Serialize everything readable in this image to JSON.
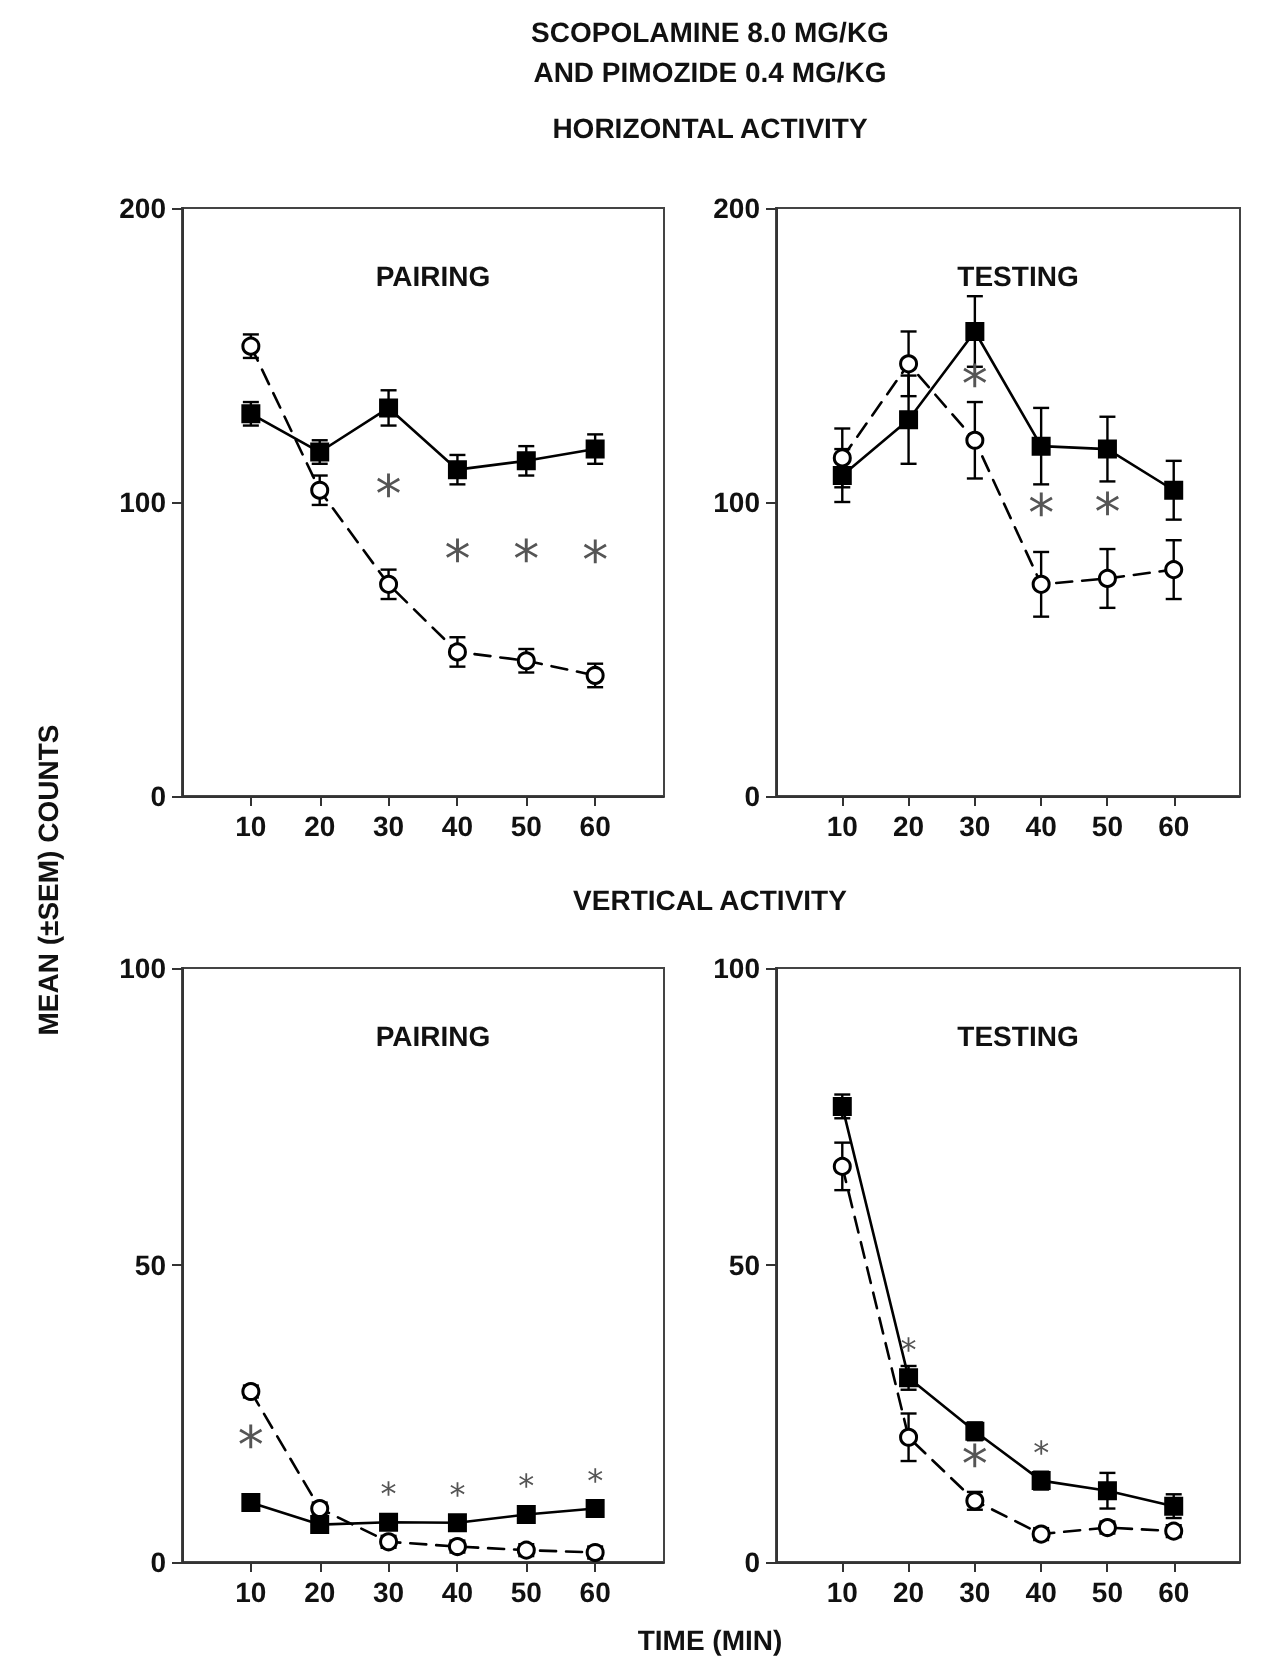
{
  "chart_data": [
    {
      "type": "line",
      "title": "PAIRING",
      "ylabel": "MEAN (±SEM) COUNTS",
      "annotations": [
        "SCOPOLAMINE 8.0 MG/KG",
        "AND PIMOZIDE 0.4 MG/KG",
        "HORIZONTAL ACTIVITY",
        "*",
        "*",
        "*",
        "*"
      ],
      "x": [
        10,
        20,
        30,
        40,
        50,
        60
      ],
      "series": [
        {
          "color": "#000000",
          "marker": "square",
          "line_style": "solid",
          "values": [
            130,
            117,
            132,
            111,
            114,
            118
          ],
          "errors": [
            4,
            4,
            6,
            5,
            5,
            5
          ]
        },
        {
          "color": "#000000",
          "marker": "circle",
          "line_style": "dashed",
          "values": [
            153,
            104,
            72,
            49,
            46,
            41
          ],
          "errors": [
            4,
            5,
            5,
            5,
            4,
            4
          ]
        }
      ],
      "xlim": [
        0,
        70
      ],
      "xticks": [
        10,
        20,
        30,
        40,
        50,
        60
      ],
      "ylim": [
        0,
        200
      ],
      "yticks": [
        0,
        100,
        200
      ],
      "grid": false
    },
    {
      "type": "line",
      "title": "TESTING",
      "annotations": [
        "*",
        "*",
        "*"
      ],
      "x": [
        10,
        20,
        30,
        40,
        50,
        60
      ],
      "series": [
        {
          "color": "#000000",
          "marker": "square",
          "line_style": "solid",
          "values": [
            109,
            128,
            158,
            119,
            118,
            104
          ],
          "errors": [
            9,
            15,
            12,
            13,
            11,
            10
          ]
        },
        {
          "color": "#000000",
          "marker": "circle",
          "line_style": "dashed",
          "values": [
            115,
            147,
            121,
            72,
            74,
            77
          ],
          "errors": [
            10,
            11,
            13,
            11,
            10,
            10
          ]
        }
      ],
      "xlim": [
        0,
        70
      ],
      "xticks": [
        10,
        20,
        30,
        40,
        50,
        60
      ],
      "ylim": [
        0,
        200
      ],
      "yticks": [
        0,
        100,
        200
      ],
      "grid": false
    },
    {
      "type": "line",
      "title": "PAIRING",
      "xlabel": "TIME (MIN)",
      "annotations": [
        "VERTICAL ACTIVITY",
        "*",
        "*",
        "*",
        "*",
        "*"
      ],
      "x": [
        10,
        20,
        30,
        40,
        50,
        60
      ],
      "series": [
        {
          "color": "#000000",
          "marker": "square",
          "line_style": "solid",
          "values": [
            10,
            6.3,
            6.7,
            6.6,
            8,
            9
          ],
          "errors": [
            1,
            1,
            1,
            1,
            1,
            1
          ]
        },
        {
          "color": "#000000",
          "marker": "circle",
          "line_style": "dashed",
          "values": [
            28.7,
            9,
            3.4,
            2.6,
            2,
            1.6
          ],
          "errors": [
            1,
            1,
            1,
            1,
            1,
            1
          ]
        }
      ],
      "xlim": [
        0,
        70
      ],
      "xticks": [
        10,
        20,
        30,
        40,
        50,
        60
      ],
      "ylim": [
        0,
        100
      ],
      "yticks": [
        0,
        50,
        100
      ],
      "grid": false
    },
    {
      "type": "line",
      "title": "TESTING",
      "annotations": [
        "*",
        "*",
        "*"
      ],
      "x": [
        10,
        20,
        30,
        40,
        50,
        60
      ],
      "series": [
        {
          "color": "#000000",
          "marker": "square",
          "line_style": "solid",
          "values": [
            76.7,
            31,
            22,
            13.7,
            12,
            9.4
          ],
          "errors": [
            2,
            2,
            1.5,
            1.5,
            3,
            2
          ]
        },
        {
          "color": "#000000",
          "marker": "circle",
          "line_style": "dashed",
          "values": [
            66.6,
            21,
            10.3,
            4.7,
            5.8,
            5.2
          ],
          "errors": [
            4,
            4,
            1.5,
            1,
            1,
            1
          ]
        }
      ],
      "xlim": [
        0,
        70
      ],
      "xticks": [
        10,
        20,
        30,
        40,
        50,
        60
      ],
      "ylim": [
        0,
        100
      ],
      "yticks": [
        0,
        50,
        100
      ],
      "grid": false
    }
  ]
}
